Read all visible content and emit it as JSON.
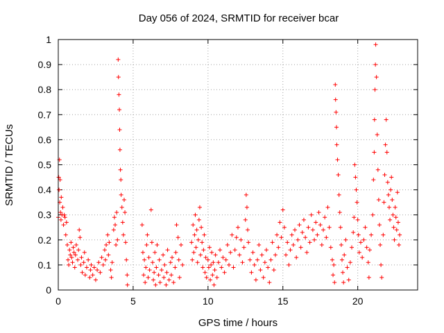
{
  "chart_data": {
    "type": "scatter",
    "title": "Day 056 of 2024, SRMTID for receiver bcar",
    "xlabel": "GPS time / hours",
    "ylabel": "SRMTID / TECUs",
    "xlim": [
      0,
      24
    ],
    "ylim": [
      0,
      1
    ],
    "xticks": [
      0,
      5,
      10,
      15,
      20
    ],
    "yticks": [
      0,
      0.1,
      0.2,
      0.3,
      0.4,
      0.5,
      0.6,
      0.7,
      0.8,
      0.9,
      1
    ],
    "xtick_labels": [
      "0",
      "5",
      "10",
      "15",
      "20"
    ],
    "ytick_labels": [
      "0",
      "0.1",
      "0.2",
      "0.3",
      "0.4",
      "0.5",
      "0.6",
      "0.7",
      "0.8",
      "0.9",
      "1"
    ],
    "grid": true,
    "marker": "+",
    "color": "#ff0000",
    "series": [
      {
        "name": "SRMTID",
        "points": [
          [
            0.0,
            0.29
          ],
          [
            0.03,
            0.45
          ],
          [
            0.05,
            0.4
          ],
          [
            0.08,
            0.52
          ],
          [
            0.1,
            0.35
          ],
          [
            0.12,
            0.44
          ],
          [
            0.15,
            0.31
          ],
          [
            0.18,
            0.28
          ],
          [
            0.2,
            0.37
          ],
          [
            0.25,
            0.3
          ],
          [
            0.3,
            0.33
          ],
          [
            0.35,
            0.26
          ],
          [
            0.4,
            0.3
          ],
          [
            0.45,
            0.29
          ],
          [
            0.5,
            0.22
          ],
          [
            0.55,
            0.27
          ],
          [
            0.6,
            0.18
          ],
          [
            0.65,
            0.12
          ],
          [
            0.7,
            0.1
          ],
          [
            0.75,
            0.16
          ],
          [
            0.8,
            0.14
          ],
          [
            0.85,
            0.19
          ],
          [
            0.9,
            0.13
          ],
          [
            0.95,
            0.11
          ],
          [
            1.0,
            0.17
          ],
          [
            1.05,
            0.15
          ],
          [
            1.1,
            0.09
          ],
          [
            1.15,
            0.14
          ],
          [
            1.2,
            0.18
          ],
          [
            1.3,
            0.12
          ],
          [
            1.35,
            0.16
          ],
          [
            1.4,
            0.24
          ],
          [
            1.45,
            0.21
          ],
          [
            1.5,
            0.1
          ],
          [
            1.55,
            0.13
          ],
          [
            1.6,
            0.07
          ],
          [
            1.7,
            0.11
          ],
          [
            1.75,
            0.15
          ],
          [
            1.8,
            0.06
          ],
          [
            1.9,
            0.09
          ],
          [
            2.0,
            0.12
          ],
          [
            2.1,
            0.05
          ],
          [
            2.15,
            0.08
          ],
          [
            2.2,
            0.1
          ],
          [
            2.3,
            0.06
          ],
          [
            2.4,
            0.09
          ],
          [
            2.5,
            0.04
          ],
          [
            2.6,
            0.08
          ],
          [
            2.7,
            0.11
          ],
          [
            2.8,
            0.07
          ],
          [
            2.9,
            0.13
          ],
          [
            3.0,
            0.1
          ],
          [
            3.1,
            0.16
          ],
          [
            3.15,
            0.12
          ],
          [
            3.2,
            0.18
          ],
          [
            3.3,
            0.22
          ],
          [
            3.35,
            0.14
          ],
          [
            3.4,
            0.19
          ],
          [
            3.5,
            0.08
          ],
          [
            3.55,
            0.05
          ],
          [
            3.6,
            0.11
          ],
          [
            3.7,
            0.24
          ],
          [
            3.75,
            0.29
          ],
          [
            3.8,
            0.26
          ],
          [
            3.85,
            0.18
          ],
          [
            3.9,
            0.31
          ],
          [
            3.95,
            0.2
          ],
          [
            4.0,
            0.92
          ],
          [
            4.02,
            0.85
          ],
          [
            4.05,
            0.78
          ],
          [
            4.08,
            0.72
          ],
          [
            4.1,
            0.64
          ],
          [
            4.12,
            0.56
          ],
          [
            4.15,
            0.48
          ],
          [
            4.18,
            0.44
          ],
          [
            4.2,
            0.38
          ],
          [
            4.25,
            0.33
          ],
          [
            4.3,
            0.27
          ],
          [
            4.35,
            0.22
          ],
          [
            4.4,
            0.36
          ],
          [
            4.45,
            0.31
          ],
          [
            4.5,
            0.19
          ],
          [
            4.55,
            0.12
          ],
          [
            4.6,
            0.06
          ],
          [
            4.62,
            0.02
          ],
          [
            5.6,
            0.26
          ],
          [
            5.65,
            0.15
          ],
          [
            5.7,
            0.06
          ],
          [
            5.75,
            0.12
          ],
          [
            5.8,
            0.03
          ],
          [
            5.85,
            0.09
          ],
          [
            5.9,
            0.18
          ],
          [
            5.95,
            0.22
          ],
          [
            6.0,
            0.05
          ],
          [
            6.05,
            0.13
          ],
          [
            6.1,
            0.08
          ],
          [
            6.2,
            0.32
          ],
          [
            6.25,
            0.19
          ],
          [
            6.3,
            0.11
          ],
          [
            6.35,
            0.04
          ],
          [
            6.4,
            0.07
          ],
          [
            6.45,
            0.15
          ],
          [
            6.5,
            0.02
          ],
          [
            6.55,
            0.09
          ],
          [
            6.6,
            0.18
          ],
          [
            6.7,
            0.06
          ],
          [
            6.75,
            0.12
          ],
          [
            6.8,
            0.03
          ],
          [
            6.9,
            0.08
          ],
          [
            7.0,
            0.14
          ],
          [
            7.05,
            0.05
          ],
          [
            7.1,
            0.1
          ],
          [
            7.2,
            0.02
          ],
          [
            7.25,
            0.07
          ],
          [
            7.3,
            0.16
          ],
          [
            7.4,
            0.04
          ],
          [
            7.5,
            0.11
          ],
          [
            7.55,
            0.06
          ],
          [
            7.6,
            0.13
          ],
          [
            7.7,
            0.03
          ],
          [
            7.8,
            0.09
          ],
          [
            7.85,
            0.15
          ],
          [
            7.9,
            0.26
          ],
          [
            8.0,
            0.21
          ],
          [
            8.05,
            0.12
          ],
          [
            8.1,
            0.05
          ],
          [
            8.2,
            0.18
          ],
          [
            8.3,
            0.1
          ],
          [
            8.9,
            0.19
          ],
          [
            8.95,
            0.12
          ],
          [
            9.0,
            0.26
          ],
          [
            9.05,
            0.15
          ],
          [
            9.1,
            0.22
          ],
          [
            9.15,
            0.3
          ],
          [
            9.2,
            0.17
          ],
          [
            9.25,
            0.24
          ],
          [
            9.3,
            0.11
          ],
          [
            9.35,
            0.2
          ],
          [
            9.4,
            0.28
          ],
          [
            9.45,
            0.33
          ],
          [
            9.5,
            0.14
          ],
          [
            9.55,
            0.25
          ],
          [
            9.6,
            0.19
          ],
          [
            9.65,
            0.09
          ],
          [
            9.7,
            0.16
          ],
          [
            9.75,
            0.22
          ],
          [
            9.8,
            0.07
          ],
          [
            9.85,
            0.13
          ],
          [
            9.9,
            0.05
          ],
          [
            10.0,
            0.12
          ],
          [
            10.05,
            0.09
          ],
          [
            10.1,
            0.17
          ],
          [
            10.15,
            0.04
          ],
          [
            10.2,
            0.1
          ],
          [
            10.25,
            0.15
          ],
          [
            10.3,
            0.06
          ],
          [
            10.35,
            0.11
          ],
          [
            10.4,
            0.02
          ],
          [
            10.45,
            0.08
          ],
          [
            10.5,
            0.14
          ],
          [
            10.6,
            0.05
          ],
          [
            10.7,
            0.11
          ],
          [
            10.8,
            0.16
          ],
          [
            10.9,
            0.09
          ],
          [
            11.0,
            0.13
          ],
          [
            11.1,
            0.07
          ],
          [
            11.2,
            0.12
          ],
          [
            11.3,
            0.18
          ],
          [
            11.4,
            0.1
          ],
          [
            11.5,
            0.15
          ],
          [
            11.6,
            0.22
          ],
          [
            11.7,
            0.09
          ],
          [
            11.8,
            0.16
          ],
          [
            11.9,
            0.21
          ],
          [
            12.0,
            0.25
          ],
          [
            12.1,
            0.14
          ],
          [
            12.2,
            0.2
          ],
          [
            12.3,
            0.11
          ],
          [
            12.4,
            0.17
          ],
          [
            12.5,
            0.28
          ],
          [
            12.55,
            0.38
          ],
          [
            12.6,
            0.33
          ],
          [
            12.65,
            0.24
          ],
          [
            12.7,
            0.19
          ],
          [
            12.8,
            0.12
          ],
          [
            12.9,
            0.07
          ],
          [
            13.0,
            0.15
          ],
          [
            13.1,
            0.1
          ],
          [
            13.2,
            0.04
          ],
          [
            13.3,
            0.12
          ],
          [
            13.4,
            0.18
          ],
          [
            13.5,
            0.08
          ],
          [
            13.6,
            0.14
          ],
          [
            13.7,
            0.05
          ],
          [
            13.8,
            0.11
          ],
          [
            13.9,
            0.16
          ],
          [
            14.0,
            0.09
          ],
          [
            14.1,
            0.03
          ],
          [
            14.2,
            0.12
          ],
          [
            14.3,
            0.19
          ],
          [
            14.4,
            0.08
          ],
          [
            14.5,
            0.14
          ],
          [
            14.6,
            0.22
          ],
          [
            14.7,
            0.17
          ],
          [
            14.8,
            0.27
          ],
          [
            14.9,
            0.21
          ],
          [
            15.0,
            0.32
          ],
          [
            15.1,
            0.25
          ],
          [
            15.2,
            0.14
          ],
          [
            15.3,
            0.19
          ],
          [
            15.4,
            0.1
          ],
          [
            15.5,
            0.16
          ],
          [
            15.6,
            0.22
          ],
          [
            15.7,
            0.18
          ],
          [
            15.8,
            0.24
          ],
          [
            15.9,
            0.13
          ],
          [
            16.0,
            0.2
          ],
          [
            16.1,
            0.26
          ],
          [
            16.2,
            0.17
          ],
          [
            16.3,
            0.23
          ],
          [
            16.4,
            0.28
          ],
          [
            16.5,
            0.21
          ],
          [
            16.6,
            0.15
          ],
          [
            16.7,
            0.25
          ],
          [
            16.8,
            0.19
          ],
          [
            16.9,
            0.3
          ],
          [
            17.0,
            0.24
          ],
          [
            17.1,
            0.2
          ],
          [
            17.2,
            0.27
          ],
          [
            17.3,
            0.22
          ],
          [
            17.4,
            0.31
          ],
          [
            17.5,
            0.26
          ],
          [
            17.6,
            0.18
          ],
          [
            17.7,
            0.24
          ],
          [
            17.8,
            0.29
          ],
          [
            17.9,
            0.21
          ],
          [
            18.0,
            0.33
          ],
          [
            18.1,
            0.25
          ],
          [
            18.2,
            0.17
          ],
          [
            18.3,
            0.12
          ],
          [
            18.35,
            0.06
          ],
          [
            18.4,
            0.1
          ],
          [
            18.45,
            0.03
          ],
          [
            18.5,
            0.82
          ],
          [
            18.52,
            0.76
          ],
          [
            18.55,
            0.71
          ],
          [
            18.58,
            0.65
          ],
          [
            18.6,
            0.58
          ],
          [
            18.65,
            0.52
          ],
          [
            18.7,
            0.46
          ],
          [
            18.75,
            0.38
          ],
          [
            18.8,
            0.31
          ],
          [
            18.85,
            0.25
          ],
          [
            18.9,
            0.18
          ],
          [
            18.95,
            0.12
          ],
          [
            19.0,
            0.07
          ],
          [
            19.05,
            0.03
          ],
          [
            19.1,
            0.14
          ],
          [
            19.2,
            0.2
          ],
          [
            19.3,
            0.09
          ],
          [
            19.4,
            0.04
          ],
          [
            19.5,
            0.11
          ],
          [
            19.6,
            0.17
          ],
          [
            19.7,
            0.23
          ],
          [
            19.75,
            0.29
          ],
          [
            19.8,
            0.5
          ],
          [
            19.85,
            0.45
          ],
          [
            19.9,
            0.4
          ],
          [
            19.95,
            0.35
          ],
          [
            20.0,
            0.28
          ],
          [
            20.05,
            0.22
          ],
          [
            20.1,
            0.15
          ],
          [
            20.2,
            0.19
          ],
          [
            20.3,
            0.13
          ],
          [
            20.4,
            0.2
          ],
          [
            20.5,
            0.25
          ],
          [
            20.6,
            0.17
          ],
          [
            20.7,
            0.11
          ],
          [
            20.75,
            0.05
          ],
          [
            20.8,
            0.16
          ],
          [
            20.9,
            0.22
          ],
          [
            21.0,
            0.3
          ],
          [
            21.05,
            0.44
          ],
          [
            21.1,
            0.55
          ],
          [
            21.12,
            0.68
          ],
          [
            21.15,
            0.8
          ],
          [
            21.18,
            0.9
          ],
          [
            21.2,
            0.98
          ],
          [
            21.25,
            0.85
          ],
          [
            21.3,
            0.62
          ],
          [
            21.35,
            0.48
          ],
          [
            21.4,
            0.36
          ],
          [
            21.45,
            0.26
          ],
          [
            21.5,
            0.18
          ],
          [
            21.55,
            0.1
          ],
          [
            21.6,
            0.05
          ],
          [
            21.7,
            0.22
          ],
          [
            21.75,
            0.35
          ],
          [
            21.8,
            0.46
          ],
          [
            21.85,
            0.58
          ],
          [
            21.9,
            0.68
          ],
          [
            21.95,
            0.55
          ],
          [
            22.0,
            0.43
          ],
          [
            22.05,
            0.38
          ],
          [
            22.1,
            0.33
          ],
          [
            22.15,
            0.28
          ],
          [
            22.2,
            0.4
          ],
          [
            22.25,
            0.45
          ],
          [
            22.3,
            0.36
          ],
          [
            22.35,
            0.3
          ],
          [
            22.4,
            0.25
          ],
          [
            22.45,
            0.2
          ],
          [
            22.5,
            0.33
          ],
          [
            22.55,
            0.29
          ],
          [
            22.6,
            0.24
          ],
          [
            22.65,
            0.39
          ],
          [
            22.7,
            0.27
          ],
          [
            22.75,
            0.18
          ],
          [
            22.8,
            0.22
          ]
        ]
      }
    ]
  }
}
